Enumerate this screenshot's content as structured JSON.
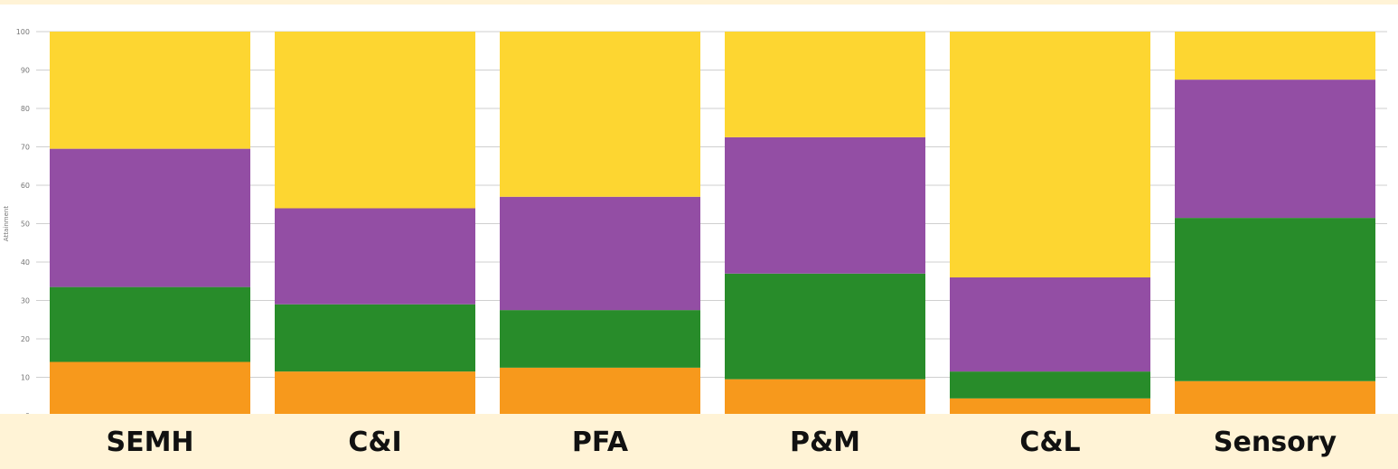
{
  "chart_data": {
    "type": "bar",
    "stacked": true,
    "categories": [
      "SEMH",
      "C&I",
      "PFA",
      "P&M",
      "C&L",
      "Sensory"
    ],
    "ylabel": "Attainment",
    "ylim": [
      0,
      100
    ],
    "yticks": [
      0,
      10,
      20,
      30,
      40,
      50,
      60,
      70,
      80,
      90,
      100
    ],
    "grid": true,
    "series": [
      {
        "color": "#f7991c",
        "values": [
          14,
          11.5,
          12.5,
          9.5,
          4.5,
          9
        ]
      },
      {
        "color": "#288c2a",
        "values": [
          19.5,
          17.5,
          15,
          27.5,
          7,
          42.5
        ]
      },
      {
        "color": "#934ea4",
        "values": [
          36,
          25,
          29.5,
          35.5,
          24.5,
          36
        ]
      },
      {
        "color": "#fdd631",
        "values": [
          30.5,
          46,
          43,
          27.5,
          64,
          12.5
        ]
      }
    ]
  }
}
